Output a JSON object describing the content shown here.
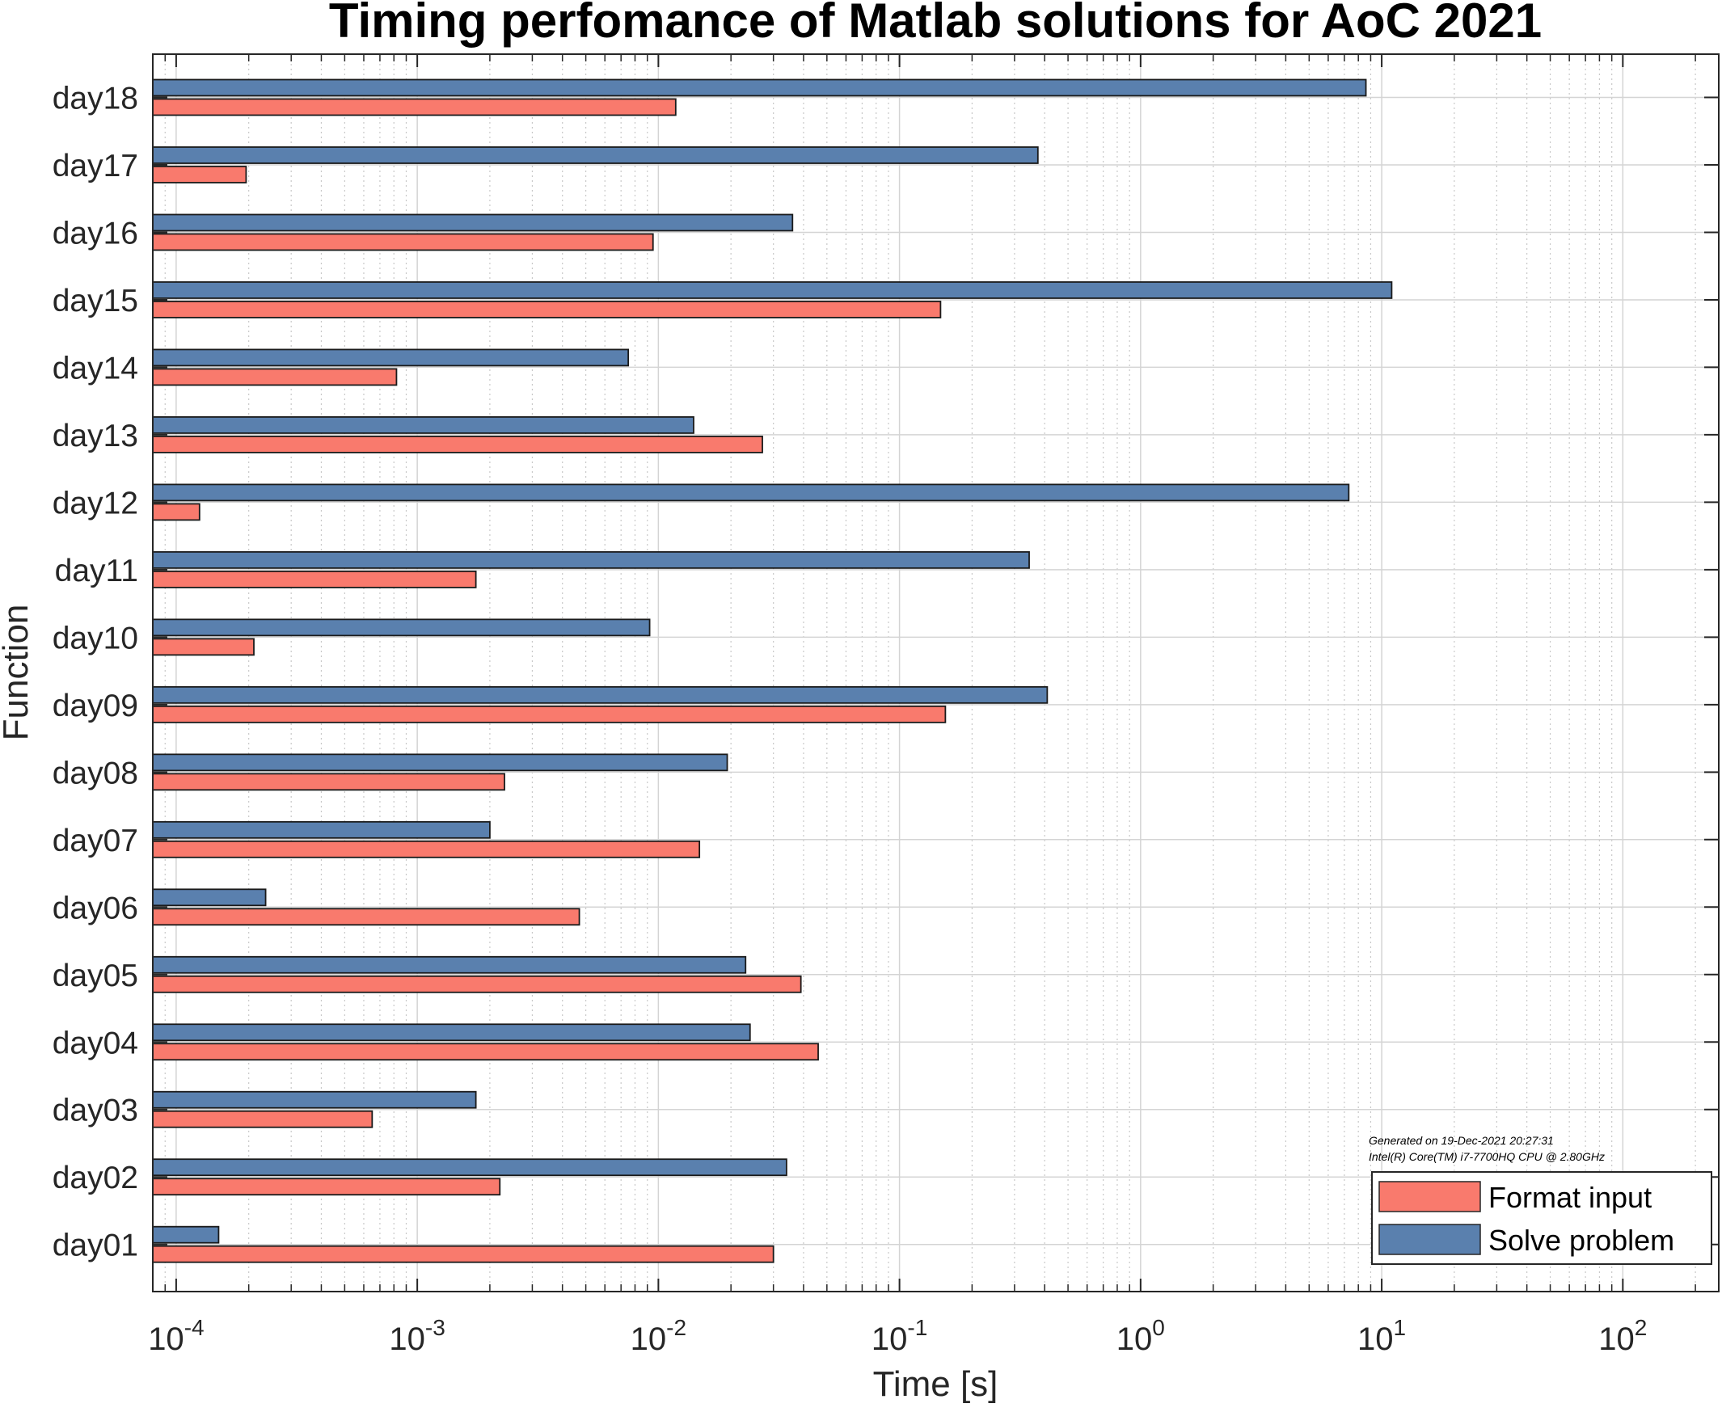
{
  "chart_data": {
    "type": "bar",
    "orientation": "horizontal",
    "title": "Timing perfomance of Matlab solutions for AoC 2021",
    "xlabel": "Time [s]",
    "ylabel": "Function",
    "x_scale": "log",
    "xlim": [
      8e-05,
      250
    ],
    "x_ticks": [
      {
        "value": 0.0001,
        "base": "10",
        "exp": "-4"
      },
      {
        "value": 0.001,
        "base": "10",
        "exp": "-3"
      },
      {
        "value": 0.01,
        "base": "10",
        "exp": "-2"
      },
      {
        "value": 0.1,
        "base": "10",
        "exp": "-1"
      },
      {
        "value": 1,
        "base": "10",
        "exp": "0"
      },
      {
        "value": 10,
        "base": "10",
        "exp": "1"
      },
      {
        "value": 100,
        "base": "10",
        "exp": "2"
      }
    ],
    "grid": true,
    "legend_position": "bottom-right",
    "categories": [
      "day01",
      "day02",
      "day03",
      "day04",
      "day05",
      "day06",
      "day07",
      "day08",
      "day09",
      "day10",
      "day11",
      "day12",
      "day13",
      "day14",
      "day15",
      "day16",
      "day17",
      "day18"
    ],
    "series": [
      {
        "name": "Format input",
        "color": "#f97a6d",
        "values": [
          0.03,
          0.0022,
          0.00065,
          0.046,
          0.039,
          0.0047,
          0.0148,
          0.0023,
          0.155,
          0.00021,
          0.00175,
          0.000125,
          0.027,
          0.00082,
          0.148,
          0.0095,
          0.000195,
          0.0118
        ]
      },
      {
        "name": "Solve problem",
        "color": "#5a80ae",
        "values": [
          0.00015,
          0.034,
          0.00175,
          0.024,
          0.023,
          0.000235,
          0.002,
          0.0193,
          0.41,
          0.0092,
          0.345,
          7.3,
          0.014,
          0.0075,
          11.0,
          0.036,
          0.375,
          8.6
        ]
      }
    ],
    "annotations": [
      "Generated on 19-Dec-2021 20:27:31",
      "Intel(R) Core(TM) i7-7700HQ CPU @ 2.80GHz"
    ]
  }
}
